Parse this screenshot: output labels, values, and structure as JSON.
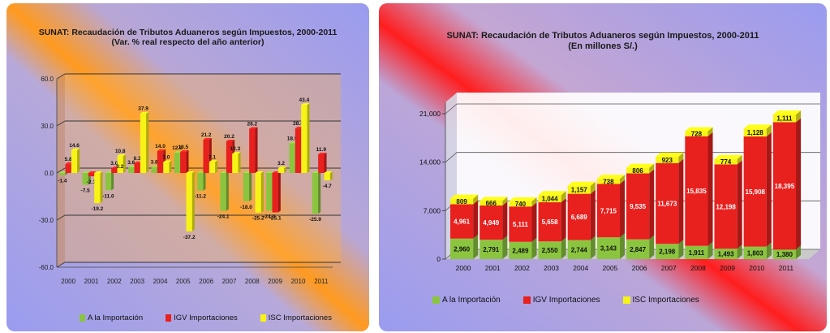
{
  "chart_data": [
    {
      "type": "bar",
      "title": "SUNAT: Recaudación de Tributos Aduaneros según Impuestos, 2000-2011",
      "subtitle": "(Var. % real respecto del año anterior)",
      "categories": [
        "2000",
        "2001",
        "2002",
        "2003",
        "2004",
        "2005",
        "2006",
        "2007",
        "2008",
        "2009",
        "2010",
        "2011"
      ],
      "series": [
        {
          "name": "A la Importación",
          "color": "#8bc53f",
          "values": [
            -1.4,
            -7.5,
            -11.0,
            3.6,
            3.8,
            12.9,
            -11.2,
            -24.1,
            -18.0,
            -24.0,
            18.9,
            -25.9
          ],
          "labels": [
            "-1.4",
            "-7.5",
            "-11.0",
            "3.6",
            "3.8",
            "12.9",
            "-11.2",
            "-24.1",
            "-18.0",
            "-24.0",
            "18.9",
            "-25.9"
          ]
        },
        {
          "name": "IGV Importaciones",
          "color": "#e8201e",
          "values": [
            5.8,
            -2.1,
            3.0,
            6.3,
            14.0,
            13.5,
            21.2,
            20.2,
            28.2,
            -25.1,
            28.4,
            11.9
          ],
          "labels": [
            "5.8",
            "-2.1",
            "3.0",
            "6.3",
            "14.0",
            "13.5",
            "21.2",
            "20.2",
            "28.2",
            "-25.1",
            "28.4",
            "11.9"
          ]
        },
        {
          "name": "ISC Importaciones",
          "color": "#f7f316",
          "values": [
            14.6,
            -19.2,
            10.8,
            37.9,
            7.0,
            -37.2,
            7.1,
            12.3,
            -25.2,
            3.2,
            43.4,
            -4.7
          ],
          "labels": [
            "14.6",
            "-19.2",
            "10.8",
            "37.9",
            "7.0",
            "-37.2",
            "7.1",
            "12.3",
            "-25.2",
            "3.2",
            "43.4",
            "-4.7"
          ]
        }
      ],
      "extra_labels": [
        "0.2"
      ],
      "yticks": [
        "60.0",
        "30.0",
        "0.0",
        "-30.0",
        "-60.0"
      ],
      "ylim": [
        -60,
        60
      ],
      "grid": true,
      "legend": "bottom"
    },
    {
      "type": "bar",
      "stacked": true,
      "title": "SUNAT: Recaudación de Tributos Aduaneros según Impuestos, 2000-2011",
      "subtitle": "(En millones S/.)",
      "categories": [
        "2000",
        "2001",
        "2002",
        "2003",
        "2004",
        "2005",
        "2006",
        "2007",
        "2008",
        "2009",
        "2010",
        "2011"
      ],
      "series": [
        {
          "name": "A la Importación",
          "color": "#8bc53f",
          "values": [
            2960,
            2791,
            2489,
            2550,
            2744,
            3143,
            2847,
            2198,
            1911,
            1493,
            1803,
            1380
          ],
          "labels": [
            "2,960",
            "2,791",
            "2,489",
            "2,550",
            "2,744",
            "3,143",
            "2,847",
            "2,198",
            "1,911",
            "1,493",
            "1,803",
            "1,380"
          ]
        },
        {
          "name": "IGV Importaciones",
          "color": "#e8201e",
          "values": [
            4961,
            4949,
            5111,
            5658,
            6689,
            7715,
            9535,
            11673,
            15835,
            12198,
            15908,
            18395
          ],
          "labels": [
            "4,961",
            "4,949",
            "5,111",
            "5,658",
            "6,689",
            "7,715",
            "9,535",
            "11,673",
            "15,835",
            "12,198",
            "15,908",
            "18,395"
          ]
        },
        {
          "name": "ISC Importaciones",
          "color": "#f7f316",
          "values": [
            809,
            666,
            740,
            1044,
            1157,
            738,
            806,
            923,
            728,
            774,
            1128,
            1111
          ],
          "labels": [
            "809",
            "666",
            "740",
            "1,044",
            "1,157",
            "738",
            "806",
            "923",
            "728",
            "774",
            "1,128",
            "1,111"
          ]
        }
      ],
      "yticks": [
        "21,000",
        "14,000",
        "7,000",
        "0"
      ],
      "ylim": [
        0,
        21000
      ],
      "grid": true,
      "legend": "bottom"
    }
  ]
}
